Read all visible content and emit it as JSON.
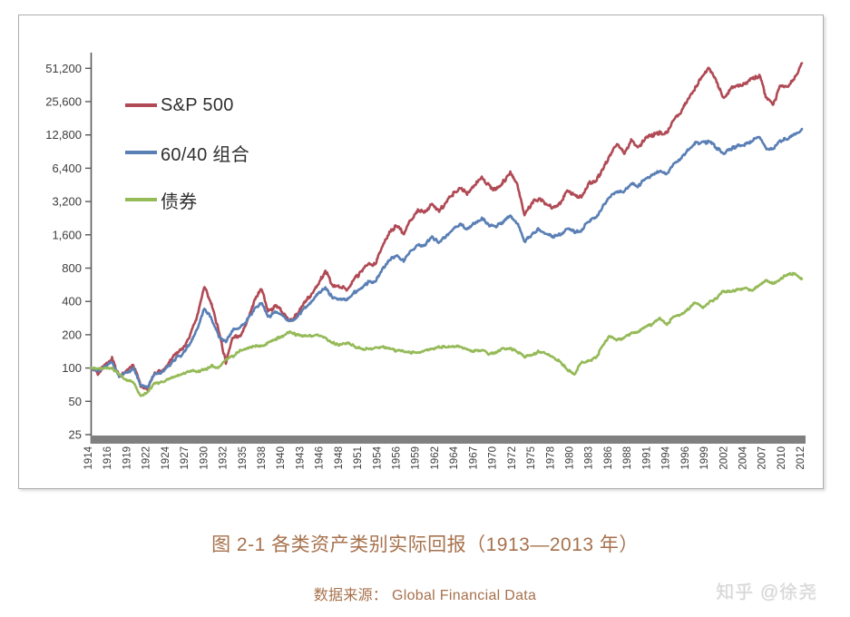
{
  "caption": {
    "title": "图 2-1 各类资产类别实际回报（1913—2013 年）",
    "source": "数据来源： Global Financial Data",
    "color": "#a7714c"
  },
  "watermark": {
    "text": "知乎 @徐尧",
    "color": "#d6d6d6"
  },
  "chart_data": {
    "type": "line",
    "title": "",
    "xlabel": "",
    "ylabel": "",
    "scale": "log2",
    "grid": false,
    "legend_position": "upper-left-inside",
    "x_range": [
      1913,
      2013
    ],
    "y_range": [
      25,
      51200
    ],
    "y_tick_values": [
      25,
      50,
      100,
      200,
      400,
      800,
      1600,
      3200,
      6400,
      12800,
      25600,
      51200
    ],
    "y_tick_labels": [
      "25",
      "50",
      "100",
      "200",
      "400",
      "800",
      "1,600",
      "3,200",
      "6,400",
      "12,800",
      "25,600",
      "51,200"
    ],
    "x_tick_labels": [
      "1914",
      "1916",
      "1919",
      "1922",
      "1924",
      "1927",
      "1930",
      "1932",
      "1935",
      "1938",
      "1940",
      "1943",
      "1946",
      "1948",
      "1951",
      "1954",
      "1956",
      "1959",
      "1962",
      "1964",
      "1967",
      "1970",
      "1972",
      "1975",
      "1978",
      "1980",
      "1983",
      "1986",
      "1988",
      "1991",
      "1994",
      "1996",
      "1999",
      "2002",
      "2004",
      "2007",
      "2010",
      "2012"
    ],
    "years": {
      "start": 1913,
      "end": 2013,
      "step": 1
    },
    "axis_color": "#595959",
    "baseline_bar_color": "#808080",
    "text_color": "#3d3d3d",
    "series": [
      {
        "name": "S&P 500",
        "color": "#b04a55",
        "values": [
          100,
          90,
          108,
          120,
          85,
          92,
          105,
          70,
          64,
          92,
          94,
          110,
          138,
          150,
          200,
          300,
          540,
          380,
          220,
          112,
          190,
          195,
          265,
          400,
          520,
          320,
          365,
          320,
          265,
          300,
          390,
          450,
          580,
          760,
          560,
          545,
          510,
          630,
          740,
          860,
          860,
          1250,
          1700,
          1900,
          1650,
          2200,
          2600,
          2550,
          3100,
          2600,
          3200,
          3800,
          4300,
          3800,
          4600,
          5300,
          4400,
          4100,
          4800,
          5800,
          4600,
          2400,
          3100,
          3400,
          3000,
          2800,
          3100,
          4000,
          3700,
          3500,
          4700,
          4900,
          6300,
          8200,
          10500,
          8700,
          11300,
          9800,
          12000,
          12700,
          13500,
          13200,
          17500,
          21000,
          27000,
          34000,
          44000,
          51500,
          39000,
          27500,
          33500,
          36000,
          37000,
          41000,
          44500,
          28000,
          24500,
          36000,
          35500,
          41500,
          57000
        ]
      },
      {
        "name": "60/40 组合",
        "color": "#5a7fb5",
        "values": [
          100,
          93,
          105,
          112,
          84,
          90,
          100,
          70,
          66,
          90,
          92,
          104,
          124,
          134,
          168,
          230,
          345,
          280,
          195,
          172,
          220,
          230,
          270,
          340,
          390,
          290,
          320,
          300,
          262,
          285,
          345,
          390,
          470,
          530,
          430,
          420,
          415,
          480,
          530,
          590,
          600,
          780,
          950,
          1020,
          930,
          1150,
          1280,
          1300,
          1520,
          1350,
          1580,
          1800,
          1980,
          1800,
          2050,
          2250,
          1950,
          1900,
          2100,
          2380,
          2000,
          1400,
          1600,
          1800,
          1650,
          1550,
          1600,
          1800,
          1700,
          1750,
          2150,
          2250,
          2900,
          3600,
          3900,
          3900,
          4700,
          4400,
          5200,
          5500,
          6000,
          5600,
          7000,
          7800,
          9300,
          10800,
          10800,
          11200,
          9800,
          8600,
          9600,
          10200,
          10500,
          11400,
          12300,
          9500,
          9800,
          11400,
          11800,
          12800,
          14500
        ]
      },
      {
        "name": "债券",
        "color": "#95ba58",
        "values": [
          100,
          99,
          101,
          99,
          88,
          78,
          74,
          56,
          60,
          74,
          74,
          80,
          84,
          89,
          94,
          94,
          96,
          104,
          100,
          120,
          128,
          143,
          152,
          160,
          157,
          170,
          182,
          196,
          212,
          200,
          196,
          194,
          200,
          185,
          168,
          162,
          168,
          158,
          148,
          150,
          151,
          156,
          150,
          143,
          143,
          139,
          136,
          147,
          149,
          154,
          154,
          158,
          156,
          148,
          142,
          145,
          133,
          140,
          149,
          151,
          140,
          127,
          130,
          141,
          136,
          126,
          114,
          96,
          88,
          112,
          117,
          123,
          158,
          196,
          178,
          186,
          208,
          212,
          238,
          248,
          278,
          246,
          295,
          300,
          340,
          395,
          350,
          395,
          430,
          500,
          490,
          515,
          525,
          505,
          560,
          630,
          580,
          645,
          705,
          715,
          640
        ]
      }
    ]
  }
}
